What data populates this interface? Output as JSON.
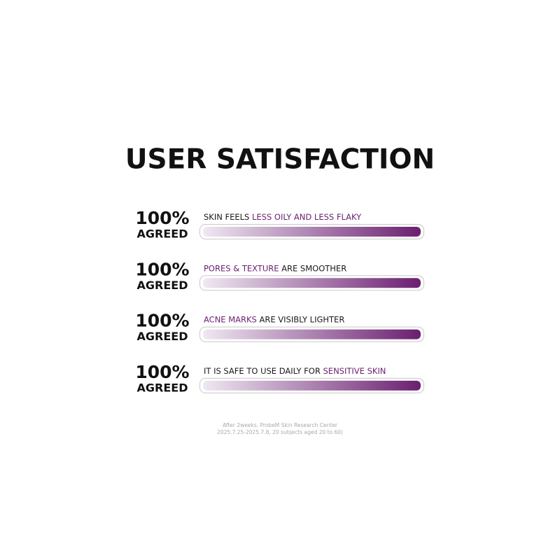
{
  "title": "USER SATISFACTION",
  "xlim": [
    0,
    100
  ],
  "text_color": "#1a1a1a",
  "highlight_color": "#6b2170",
  "bar_colors": [
    "#efe8f2",
    "#6b1f70"
  ],
  "items": [
    {
      "value": 100,
      "value_label": "100%",
      "sublabel": "AGREED",
      "text": [
        {
          "t": "SKIN FEELS ",
          "highlight": false
        },
        {
          "t": "LESS OILY AND LESS FLAKY",
          "highlight": true
        }
      ]
    },
    {
      "value": 100,
      "value_label": "100%",
      "sublabel": "AGREED",
      "text": [
        {
          "t": "PORES & TEXTURE",
          "highlight": true
        },
        {
          "t": " ARE SMOOTHER",
          "highlight": false
        }
      ]
    },
    {
      "value": 100,
      "value_label": "100%",
      "sublabel": "AGREED",
      "text": [
        {
          "t": "ACNE MARKS",
          "highlight": true
        },
        {
          "t": " ARE VISIBLY LIGHTER",
          "highlight": false
        }
      ]
    },
    {
      "value": 100,
      "value_label": "100%",
      "sublabel": "AGREED",
      "text": [
        {
          "t": "IT IS SAFE TO USE DAILY FOR ",
          "highlight": false
        },
        {
          "t": "SENSITIVE SKIN",
          "highlight": true
        }
      ]
    }
  ],
  "footnote": [
    "After 2weeks. ProbeM Skin Research Center",
    "2025.7.25-2025.7.8, 20 subjects aged 20 to 60)"
  ]
}
